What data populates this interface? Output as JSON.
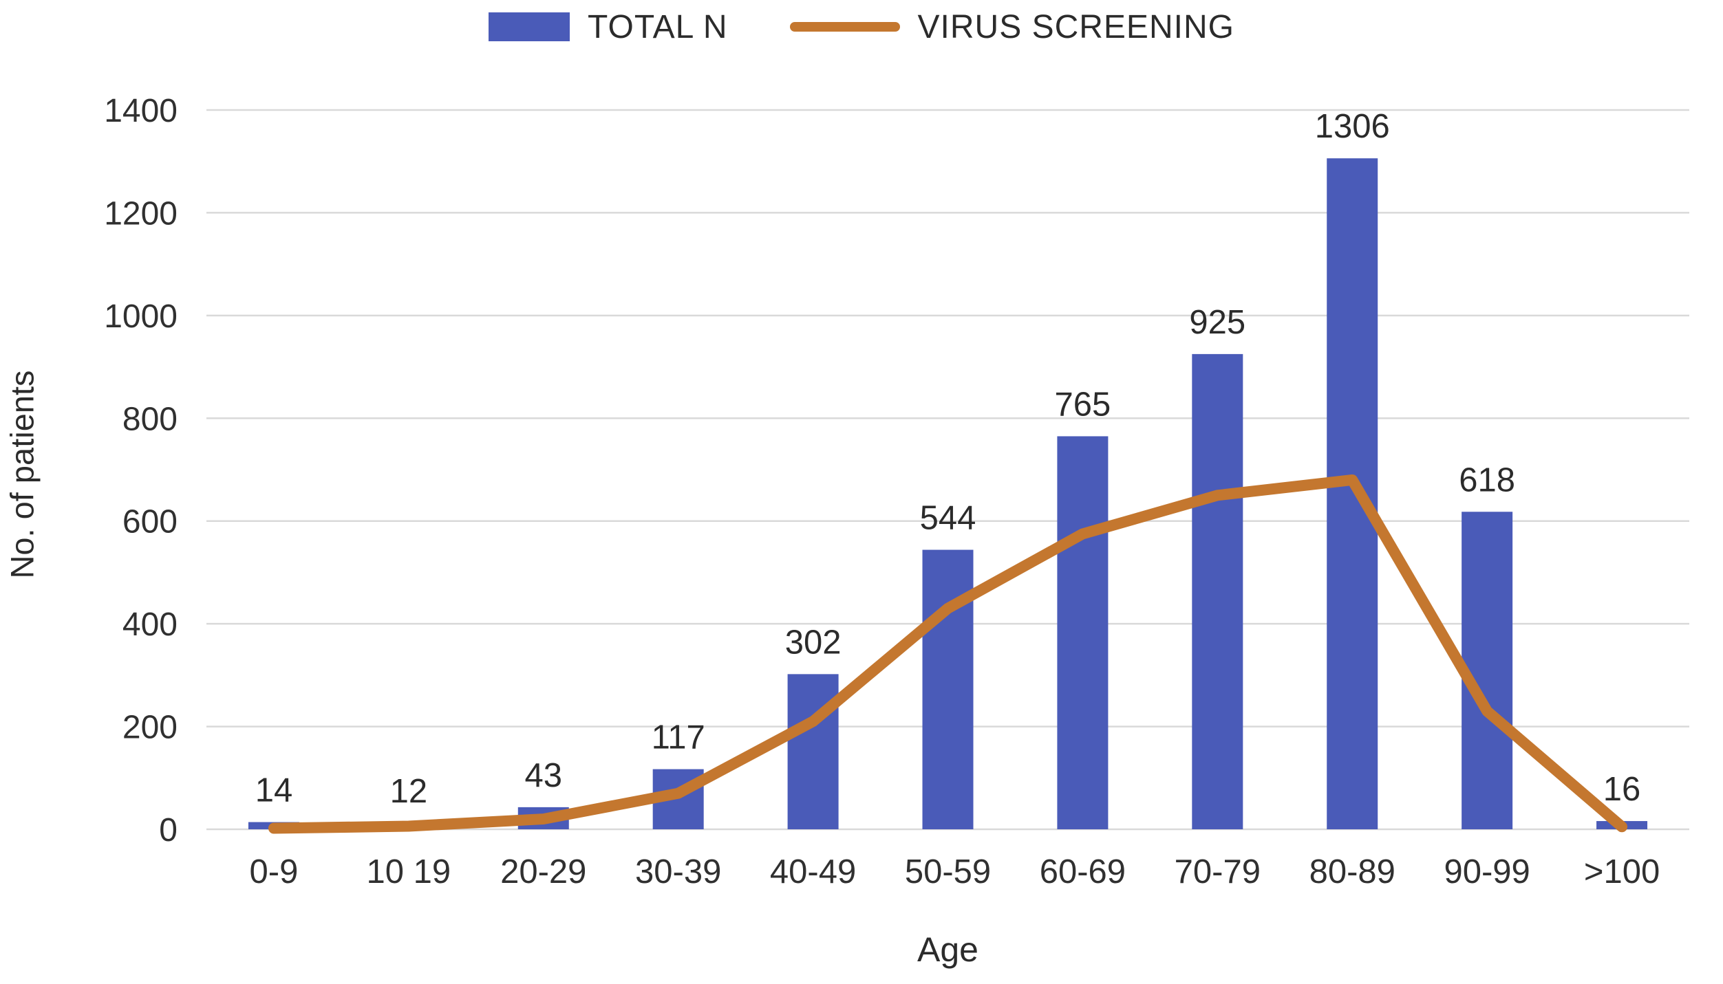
{
  "chart_data": {
    "type": "bar",
    "subtype": "combo-bar-line",
    "categories": [
      "0-9",
      "10 19",
      "20-29",
      "30-39",
      "40-49",
      "50-59",
      "60-69",
      "70-79",
      "80-89",
      "90-99",
      ">100"
    ],
    "series": [
      {
        "name": "TOTAL N",
        "type": "bar",
        "color": "#4a5bb8",
        "values": [
          14,
          12,
          43,
          117,
          302,
          544,
          765,
          925,
          1306,
          618,
          16
        ]
      },
      {
        "name": "VIRUS SCREENING",
        "type": "line",
        "color": "#c4772f",
        "values": [
          2,
          6,
          20,
          70,
          210,
          430,
          575,
          650,
          680,
          230,
          5
        ]
      }
    ],
    "title": "",
    "xlabel": "Age",
    "ylabel": "No. of patients",
    "ylim": [
      0,
      1400
    ],
    "ytick_step": 200,
    "yticks": [
      "0",
      "200",
      "400",
      "600",
      "800",
      "1000",
      "1200",
      "1400"
    ],
    "grid": true,
    "legend_position": "top",
    "bar_value_labels": [
      14,
      12,
      43,
      117,
      302,
      544,
      765,
      925,
      1306,
      618,
      16
    ],
    "colors": {
      "gridline": "#d9d9d9",
      "axis_text": "#303030",
      "label_text": "#2b2b2b"
    }
  }
}
